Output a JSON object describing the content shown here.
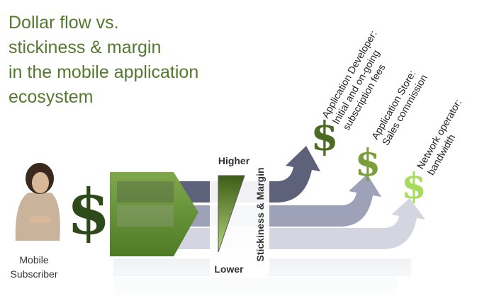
{
  "header": {
    "title_lines": [
      "Dollar flow vs.",
      "stickiness & margin",
      "in the mobile application",
      "ecosystem"
    ]
  },
  "subscriber": {
    "label_lines": [
      "Mobile",
      "Subscriber"
    ],
    "dollar": "$"
  },
  "scale": {
    "top": "Higher",
    "bottom": "Lower",
    "axis_label": "Stickiness & Margin"
  },
  "recipients": [
    {
      "dollar": "$",
      "label_lines": [
        "Application Developer:",
        "Initial and on-going",
        "subscription fees"
      ]
    },
    {
      "dollar": "$",
      "label_lines": [
        "Application Store:",
        "Sales commission"
      ]
    },
    {
      "dollar": "$",
      "label_lines": [
        "Network operator:",
        "bandwidth"
      ]
    }
  ]
}
